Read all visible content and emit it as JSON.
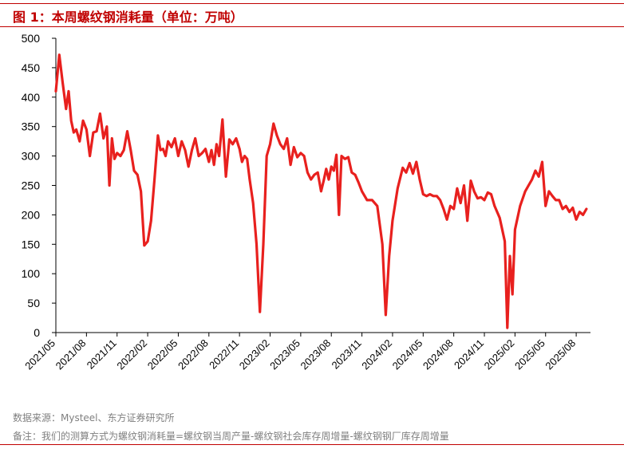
{
  "header": {
    "figure_title": "图 1：本周螺纹钢消耗量（单位：万吨）"
  },
  "footer": {
    "source": "数据来源：Mysteel、东方证券研究所",
    "note": "备注：我们的测算方式为螺纹钢消耗量=螺纹钢当周产量-螺纹钢社会库存周增量-螺纹钢钢厂库存周增量"
  },
  "colors": {
    "accent": "#c00000",
    "series": "#e8201e",
    "text_secondary": "#808080"
  },
  "chart_data": {
    "type": "line",
    "title": "本周螺纹钢消耗量（单位：万吨）",
    "xlabel": "",
    "ylabel": "",
    "ylim": [
      0,
      500
    ],
    "yticks": [
      0,
      50,
      100,
      150,
      200,
      250,
      300,
      350,
      400,
      450,
      500
    ],
    "x_ticks": [
      "2021/05",
      "2021/08",
      "2021/11",
      "2022/02",
      "2022/05",
      "2022/08",
      "2022/11",
      "2023/02",
      "2023/05",
      "2023/08",
      "2023/11",
      "2024/02",
      "2024/05",
      "2024/08",
      "2024/11",
      "2025/02",
      "2025/05",
      "2025/08"
    ],
    "grid": false,
    "legend": "none",
    "series": [
      {
        "name": "",
        "points": [
          [
            "2021/05",
            410
          ],
          [
            "2021/05",
            472
          ],
          [
            "2021/05",
            425
          ],
          [
            "2021/06",
            380
          ],
          [
            "2021/06",
            410
          ],
          [
            "2021/06",
            360
          ],
          [
            "2021/06",
            340
          ],
          [
            "2021/07",
            345
          ],
          [
            "2021/07",
            325
          ],
          [
            "2021/07",
            360
          ],
          [
            "2021/08",
            345
          ],
          [
            "2021/08",
            300
          ],
          [
            "2021/08",
            340
          ],
          [
            "2021/09",
            342
          ],
          [
            "2021/09",
            372
          ],
          [
            "2021/09",
            330
          ],
          [
            "2021/10",
            350
          ],
          [
            "2021/10",
            250
          ],
          [
            "2021/10",
            330
          ],
          [
            "2021/10",
            295
          ],
          [
            "2021/11",
            305
          ],
          [
            "2021/11",
            300
          ],
          [
            "2021/11",
            310
          ],
          [
            "2021/12",
            342
          ],
          [
            "2021/12",
            310
          ],
          [
            "2021/12",
            275
          ],
          [
            "2022/01",
            268
          ],
          [
            "2022/01",
            240
          ],
          [
            "2022/01",
            148
          ],
          [
            "2022/02",
            155
          ],
          [
            "2022/02",
            190
          ],
          [
            "2022/02",
            260
          ],
          [
            "2022/03",
            335
          ],
          [
            "2022/03",
            310
          ],
          [
            "2022/03",
            312
          ],
          [
            "2022/03",
            300
          ],
          [
            "2022/04",
            325
          ],
          [
            "2022/04",
            315
          ],
          [
            "2022/04",
            330
          ],
          [
            "2022/05",
            300
          ],
          [
            "2022/05",
            325
          ],
          [
            "2022/05",
            310
          ],
          [
            "2022/06",
            282
          ],
          [
            "2022/06",
            310
          ],
          [
            "2022/06",
            330
          ],
          [
            "2022/07",
            300
          ],
          [
            "2022/07",
            305
          ],
          [
            "2022/07",
            312
          ],
          [
            "2022/08",
            290
          ],
          [
            "2022/08",
            310
          ],
          [
            "2022/08",
            285
          ],
          [
            "2022/08",
            320
          ],
          [
            "2022/09",
            300
          ],
          [
            "2022/09",
            362
          ],
          [
            "2022/09",
            265
          ],
          [
            "2022/10",
            328
          ],
          [
            "2022/10",
            320
          ],
          [
            "2022/10",
            330
          ],
          [
            "2022/11",
            312
          ],
          [
            "2022/11",
            290
          ],
          [
            "2022/11",
            300
          ],
          [
            "2022/11",
            295
          ],
          [
            "2022/12",
            260
          ],
          [
            "2022/12",
            220
          ],
          [
            "2022/12",
            150
          ],
          [
            "2023/01",
            35
          ],
          [
            "2023/01",
            150
          ],
          [
            "2023/01",
            300
          ],
          [
            "2023/02",
            320
          ],
          [
            "2023/02",
            355
          ],
          [
            "2023/02",
            335
          ],
          [
            "2023/03",
            320
          ],
          [
            "2023/03",
            312
          ],
          [
            "2023/03",
            330
          ],
          [
            "2023/04",
            285
          ],
          [
            "2023/04",
            315
          ],
          [
            "2023/04",
            298
          ],
          [
            "2023/05",
            305
          ],
          [
            "2023/05",
            300
          ],
          [
            "2023/05",
            272
          ],
          [
            "2023/06",
            260
          ],
          [
            "2023/06",
            268
          ],
          [
            "2023/06",
            272
          ],
          [
            "2023/07",
            240
          ],
          [
            "2023/07",
            258
          ],
          [
            "2023/07",
            278
          ],
          [
            "2023/07",
            260
          ],
          [
            "2023/08",
            282
          ],
          [
            "2023/08",
            275
          ],
          [
            "2023/08",
            302
          ],
          [
            "2023/08",
            200
          ],
          [
            "2023/09",
            300
          ],
          [
            "2023/09",
            295
          ],
          [
            "2023/09",
            298
          ],
          [
            "2023/10",
            272
          ],
          [
            "2023/10",
            268
          ],
          [
            "2023/10",
            255
          ],
          [
            "2023/11",
            240
          ],
          [
            "2023/11",
            225
          ],
          [
            "2023/12",
            225
          ],
          [
            "2023/12",
            215
          ],
          [
            "2024/01",
            150
          ],
          [
            "2024/01",
            30
          ],
          [
            "2024/01",
            130
          ],
          [
            "2024/02",
            190
          ],
          [
            "2024/02",
            245
          ],
          [
            "2024/03",
            280
          ],
          [
            "2024/03",
            272
          ],
          [
            "2024/03",
            288
          ],
          [
            "2024/04",
            270
          ],
          [
            "2024/04",
            290
          ],
          [
            "2024/04",
            260
          ],
          [
            "2024/05",
            235
          ],
          [
            "2024/05",
            232
          ],
          [
            "2024/05",
            235
          ],
          [
            "2024/06",
            232
          ],
          [
            "2024/06",
            232
          ],
          [
            "2024/06",
            225
          ],
          [
            "2024/07",
            210
          ],
          [
            "2024/07",
            192
          ],
          [
            "2024/07",
            215
          ],
          [
            "2024/08",
            210
          ],
          [
            "2024/08",
            245
          ],
          [
            "2024/08",
            220
          ],
          [
            "2024/09",
            250
          ],
          [
            "2024/09",
            190
          ],
          [
            "2024/09",
            258
          ],
          [
            "2024/10",
            240
          ],
          [
            "2024/10",
            228
          ],
          [
            "2024/10",
            230
          ],
          [
            "2024/11",
            225
          ],
          [
            "2024/11",
            238
          ],
          [
            "2024/11",
            235
          ],
          [
            "2024/12",
            215
          ],
          [
            "2024/12",
            195
          ],
          [
            "2025/01",
            155
          ],
          [
            "2025/01",
            8
          ],
          [
            "2025/01",
            130
          ],
          [
            "2025/01",
            65
          ],
          [
            "2025/02",
            175
          ],
          [
            "2025/02",
            215
          ],
          [
            "2025/03",
            240
          ],
          [
            "2025/03",
            250
          ],
          [
            "2025/03",
            260
          ],
          [
            "2025/04",
            275
          ],
          [
            "2025/04",
            265
          ],
          [
            "2025/04",
            290
          ],
          [
            "2025/05",
            215
          ],
          [
            "2025/05",
            240
          ],
          [
            "2025/05",
            232
          ],
          [
            "2025/06",
            225
          ],
          [
            "2025/06",
            225
          ],
          [
            "2025/06",
            210
          ],
          [
            "2025/07",
            215
          ],
          [
            "2025/07",
            205
          ],
          [
            "2025/07",
            212
          ],
          [
            "2025/08",
            192
          ],
          [
            "2025/08",
            205
          ],
          [
            "2025/08",
            200
          ],
          [
            "2025/09",
            210
          ]
        ]
      }
    ]
  }
}
